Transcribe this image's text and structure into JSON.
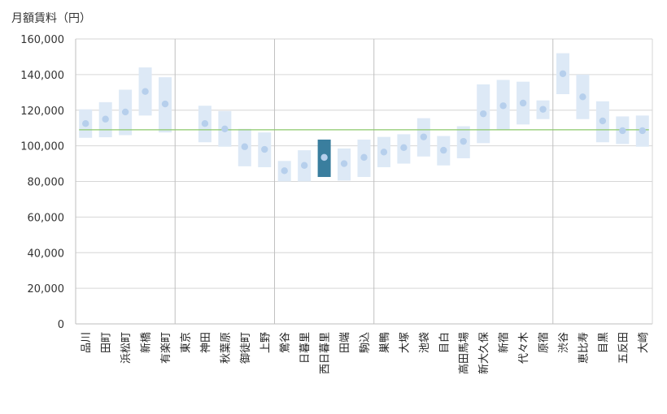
{
  "chart_data": {
    "type": "range-dot",
    "ylabel": "月額賃料（円）",
    "ylim": [
      0,
      160000
    ],
    "yticks": [
      0,
      20000,
      40000,
      60000,
      80000,
      100000,
      120000,
      140000,
      160000
    ],
    "ytick_labels": [
      "0",
      "20,000",
      "40,000",
      "60,000",
      "80,000",
      "100,000",
      "120,000",
      "140,000",
      "160,000"
    ],
    "reference_value": 109000,
    "highlight": "西日暮里",
    "group_separators_after": [
      "有楽町",
      "上野",
      "駒込",
      "原宿"
    ],
    "categories": [
      "品川",
      "田町",
      "浜松町",
      "新橋",
      "有楽町",
      "東京",
      "神田",
      "秋葉原",
      "御徒町",
      "上野",
      "鶯谷",
      "日暮里",
      "西日暮里",
      "田端",
      "駒込",
      "巣鴨",
      "大塚",
      "池袋",
      "目白",
      "高田馬場",
      "新大久保",
      "新宿",
      "代々木",
      "原宿",
      "渋谷",
      "恵比寿",
      "目黒",
      "五反田",
      "大崎"
    ],
    "low": [
      104500,
      104800,
      106000,
      117000,
      107500,
      null,
      102000,
      99500,
      88500,
      88000,
      80000,
      80000,
      82500,
      80500,
      82500,
      88000,
      90000,
      94000,
      89000,
      93000,
      101500,
      109000,
      112000,
      115000,
      129000,
      115000,
      102000,
      101000,
      99500
    ],
    "high": [
      120500,
      124500,
      131500,
      144000,
      138500,
      null,
      122500,
      119500,
      109500,
      107500,
      91500,
      97500,
      103500,
      98500,
      103500,
      105000,
      106500,
      115500,
      105500,
      111000,
      134500,
      137000,
      136000,
      125500,
      152000,
      140000,
      125000,
      116500,
      117000
    ],
    "values": [
      112500,
      115000,
      119000,
      130500,
      123500,
      null,
      112500,
      109500,
      99500,
      98000,
      86000,
      89000,
      93500,
      90000,
      93500,
      96500,
      99000,
      105000,
      97500,
      102500,
      118000,
      122500,
      124000,
      120500,
      140500,
      127500,
      114000,
      108500,
      108500
    ],
    "colors": {
      "range": "#dde9f6",
      "dot": "#b6cfec",
      "highlight_range": "#3a7e9e",
      "reference_line": "#8cc96a",
      "grid": "#d6d6d6",
      "separator": "#c0c0c0",
      "axis": "#bfbfbf"
    }
  }
}
